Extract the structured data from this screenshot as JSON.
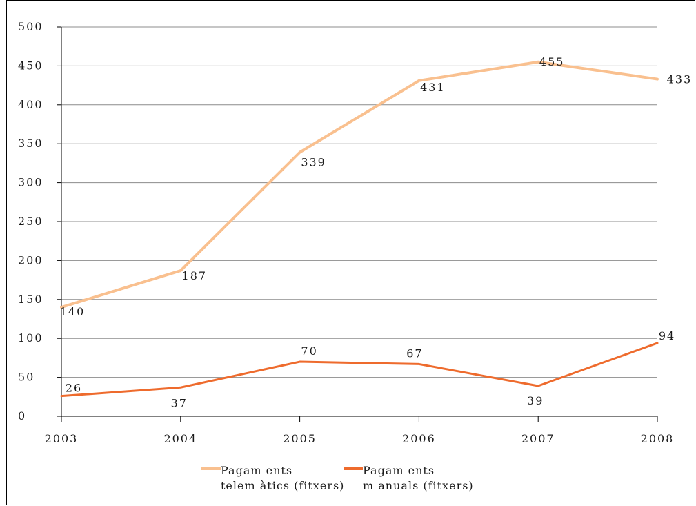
{
  "chart_data": {
    "type": "line",
    "categories": [
      "2003",
      "2004",
      "2005",
      "2006",
      "2007",
      "2008"
    ],
    "series": [
      {
        "name": "Pagaments telemàtics (fitxers)",
        "legend_lines": [
          "Pagam ents",
          "telem àtics (fitxers)"
        ],
        "values": [
          140,
          187,
          339,
          431,
          455,
          433
        ],
        "color": "#f9c08f"
      },
      {
        "name": "Pagaments manuals (fitxers)",
        "legend_lines": [
          "Pagam ents",
          "m anuals (fitxers)"
        ],
        "values": [
          26,
          37,
          70,
          67,
          39,
          94
        ],
        "color": "#ee6b2d"
      }
    ],
    "y_ticks": [
      "0",
      "50",
      "100",
      "150",
      "200",
      "250",
      "300",
      "350",
      "400",
      "450",
      "500"
    ],
    "ylim": [
      0,
      500
    ],
    "grid": true,
    "legend": "bottom"
  }
}
